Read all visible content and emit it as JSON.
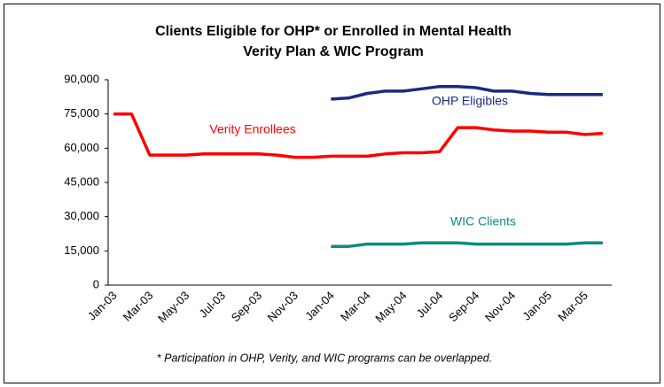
{
  "chart_data": {
    "type": "line",
    "title": [
      "Clients Eligible for OHP* or Enrolled in Mental Health",
      "Verity Plan & WIC Program"
    ],
    "footnote": "* Participation in OHP, Verity, and WIC programs can be overlapped.",
    "categories": [
      "Jan-03",
      null,
      "Mar-03",
      null,
      "May-03",
      null,
      "Jul-03",
      null,
      "Sep-03",
      null,
      "Nov-03",
      null,
      "Jan-04",
      null,
      "Mar-04",
      null,
      "May-04",
      null,
      "Jul-04",
      null,
      "Sep-04",
      null,
      "Nov-04",
      null,
      "Jan-05",
      null,
      "Mar-05",
      null
    ],
    "series": [
      {
        "name": "Verity Enrollees",
        "color": "#ff0000",
        "values": [
          75000,
          75000,
          57000,
          57000,
          57000,
          57500,
          57500,
          57500,
          57500,
          57000,
          56000,
          56000,
          56500,
          56500,
          56500,
          57500,
          58000,
          58000,
          58500,
          69000,
          69000,
          68000,
          67500,
          67500,
          67000,
          67000,
          66000,
          66500
        ]
      },
      {
        "name": "OHP Eligibles",
        "color": "#1b2a80",
        "values": [
          null,
          null,
          null,
          null,
          null,
          null,
          null,
          null,
          null,
          null,
          null,
          null,
          81500,
          82000,
          84000,
          85000,
          85000,
          86000,
          87000,
          87000,
          86500,
          85000,
          85000,
          84000,
          83500,
          83500,
          83500,
          83500
        ]
      },
      {
        "name": "WIC Clients",
        "color": "#0f8a84",
        "values": [
          null,
          null,
          null,
          null,
          null,
          null,
          null,
          null,
          null,
          null,
          null,
          null,
          17000,
          17000,
          18000,
          18000,
          18000,
          18500,
          18500,
          18500,
          18000,
          18000,
          18000,
          18000,
          18000,
          18000,
          18500,
          18500
        ]
      }
    ],
    "ylim": [
      0,
      90000
    ],
    "yticks": [
      0,
      {
        "value": 15000,
        "label": "15,000"
      },
      {
        "value": 30000,
        "label": "30,000"
      },
      {
        "value": 45000,
        "label": "45,000"
      },
      {
        "value": 60000,
        "label": "60,000"
      },
      {
        "value": 75000,
        "label": "75,000"
      },
      {
        "value": 90000,
        "label": "90,000"
      }
    ]
  }
}
